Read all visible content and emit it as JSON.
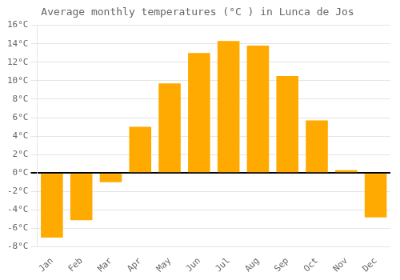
{
  "chart_data": {
    "type": "bar",
    "title": "Average monthly temperatures (°C ) in Lunca de Jos",
    "categories": [
      "Jan",
      "Feb",
      "Mar",
      "Apr",
      "May",
      "Jun",
      "Jul",
      "Aug",
      "Sep",
      "Oct",
      "Nov",
      "Dec"
    ],
    "values": [
      -7.0,
      -5.1,
      -1.0,
      5.0,
      9.7,
      13.0,
      14.3,
      13.8,
      10.5,
      5.7,
      0.3,
      -4.8
    ],
    "color": "#FFAA00",
    "ylim": [
      -8,
      16
    ],
    "yticks": [
      {
        "value": -8,
        "label": "-8°C"
      },
      {
        "value": -6,
        "label": "-6°C"
      },
      {
        "value": -4,
        "label": "-4°C"
      },
      {
        "value": -2,
        "label": "-2°C"
      },
      {
        "value": 0,
        "label": "0°C"
      },
      {
        "value": 2,
        "label": "2°C"
      },
      {
        "value": 4,
        "label": "4°C"
      },
      {
        "value": 6,
        "label": "6°C"
      },
      {
        "value": 8,
        "label": "8°C"
      },
      {
        "value": 10,
        "label": "10°C"
      },
      {
        "value": 12,
        "label": "12°C"
      },
      {
        "value": 14,
        "label": "14°C"
      },
      {
        "value": 16,
        "label": "16°C"
      }
    ],
    "grid": true
  }
}
